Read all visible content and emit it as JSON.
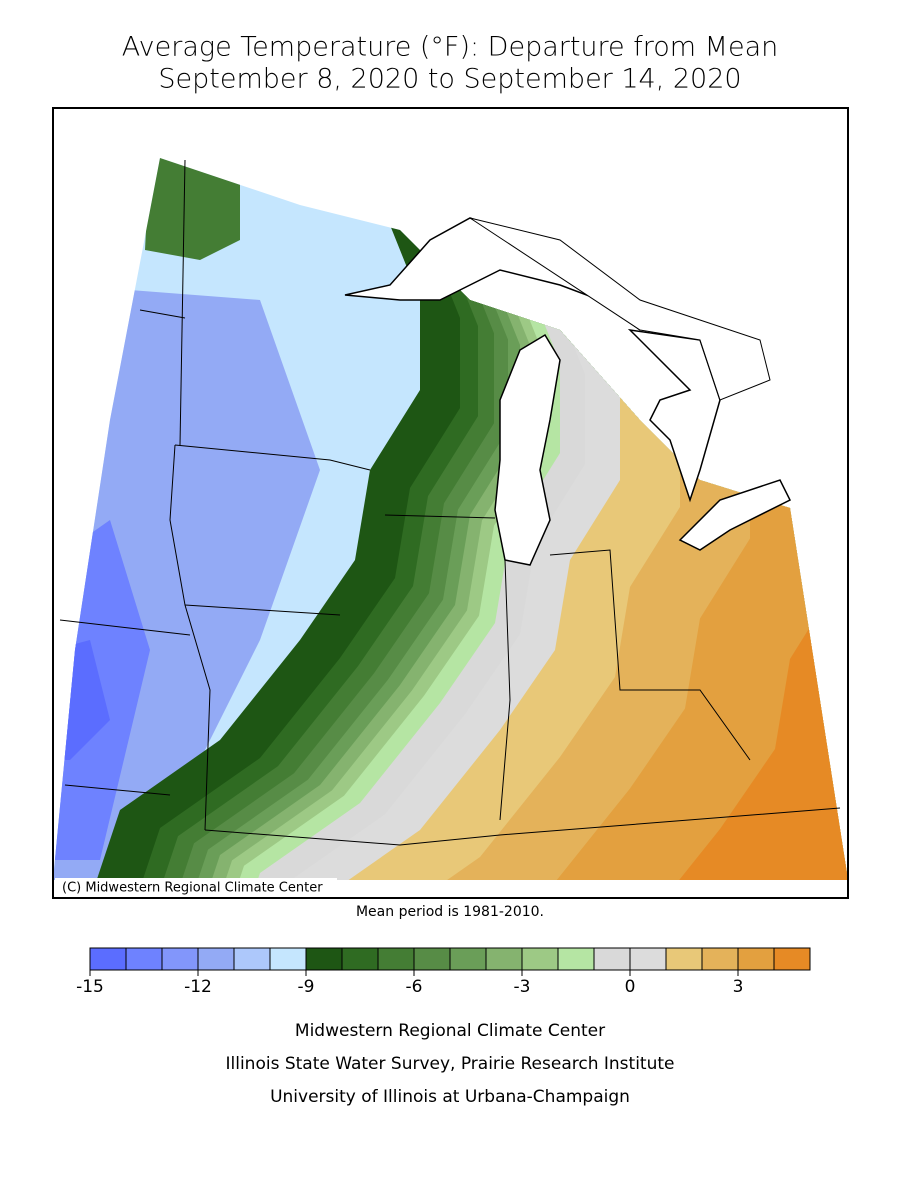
{
  "header": {
    "title": "Average Temperature (°F): Departure from Mean",
    "subtitle": "September 8, 2020 to September 14, 2020"
  },
  "map": {
    "copyright": "(C) Midwestern Regional Climate Center",
    "note": "Mean period is 1981-2010."
  },
  "colorbar": {
    "range": [
      -15,
      5
    ],
    "ticks": [
      -15,
      -12,
      -9,
      -6,
      -3,
      0,
      3
    ],
    "colors": [
      "#5b6dff",
      "#6e82ff",
      "#8296fb",
      "#93aaf5",
      "#adc8fb",
      "#c5e6fe",
      "#1e5614",
      "#2f6b22",
      "#447d34",
      "#578c46",
      "#6a9e58",
      "#85b36f",
      "#9dc985",
      "#b5e5a3",
      "#d9d9d9",
      "#dcdcdc",
      "#e8c878",
      "#e4b25a",
      "#e3a03f",
      "#e68a25"
    ]
  },
  "footer": {
    "lines": [
      "Midwestern Regional Climate Center",
      "Illinois State Water Survey, Prairie Research Institute",
      "University of Illinois at Urbana-Champaign"
    ]
  }
}
